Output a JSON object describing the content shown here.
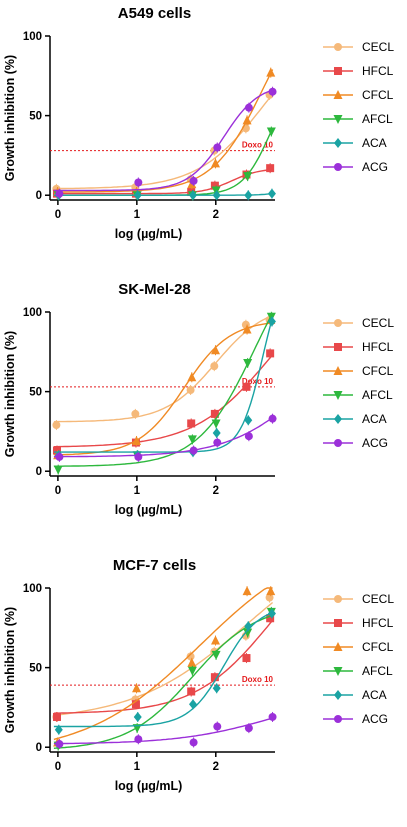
{
  "chart_data": [
    {
      "type": "line",
      "title": "A549 cells",
      "xlabel": "log (µg/mL)",
      "ylabel": "Growth inhibition (%)",
      "xlim": [
        -0.1,
        2.75
      ],
      "ylim": [
        -3,
        100
      ],
      "xticks": [
        0,
        1,
        2
      ],
      "yticks": [
        0,
        50,
        100
      ],
      "reference": {
        "label": "Doxo 10",
        "y": 28
      },
      "legend_position": "right",
      "x": [
        0,
        1,
        1.7,
        2,
        2.4,
        2.7
      ],
      "series": [
        {
          "name": "CECL",
          "color": "#f5b97a",
          "marker": "circle",
          "values": [
            4,
            5,
            10,
            28,
            42,
            63
          ]
        },
        {
          "name": "HFCL",
          "color": "#e8484a",
          "marker": "square",
          "values": [
            1,
            1,
            2,
            6,
            13,
            17
          ]
        },
        {
          "name": "CFCL",
          "color": "#f08a24",
          "marker": "triangle-up",
          "values": [
            2,
            2,
            7,
            20,
            47,
            77
          ]
        },
        {
          "name": "AFCL",
          "color": "#2db83d",
          "marker": "triangle-down",
          "values": [
            0,
            0,
            0,
            3,
            12,
            40
          ]
        },
        {
          "name": "ACA",
          "color": "#1aa3a3",
          "marker": "diamond",
          "values": [
            0,
            0,
            0,
            0,
            0,
            1
          ]
        },
        {
          "name": "ACG",
          "color": "#9b30d9",
          "marker": "circle",
          "values": [
            1,
            8,
            9,
            30,
            55,
            65
          ]
        }
      ]
    },
    {
      "type": "line",
      "title": "SK-Mel-28",
      "xlabel": "log (µg/mL)",
      "ylabel": "Growth inhibition (%)",
      "xlim": [
        -0.1,
        2.75
      ],
      "ylim": [
        -3,
        100
      ],
      "xticks": [
        0,
        1,
        2
      ],
      "yticks": [
        0,
        50,
        100
      ],
      "reference": {
        "label": "Doxo 10",
        "y": 53
      },
      "legend_position": "right",
      "x": [
        0,
        1,
        1.7,
        2,
        2.4,
        2.7
      ],
      "series": [
        {
          "name": "CECL",
          "color": "#f5b97a",
          "marker": "circle",
          "values": [
            29,
            36,
            51,
            66,
            92,
            95
          ]
        },
        {
          "name": "HFCL",
          "color": "#e8484a",
          "marker": "square",
          "values": [
            13,
            18,
            30,
            36,
            53,
            74
          ]
        },
        {
          "name": "CFCL",
          "color": "#f08a24",
          "marker": "triangle-up",
          "values": [
            10,
            19,
            59,
            76,
            89,
            95
          ]
        },
        {
          "name": "AFCL",
          "color": "#2db83d",
          "marker": "triangle-down",
          "values": [
            1,
            10,
            20,
            30,
            68,
            97
          ]
        },
        {
          "name": "ACA",
          "color": "#1aa3a3",
          "marker": "diamond",
          "values": [
            10,
            10,
            12,
            24,
            32,
            94
          ]
        },
        {
          "name": "ACG",
          "color": "#9b30d9",
          "marker": "circle",
          "values": [
            9,
            9,
            13,
            18,
            22,
            33
          ]
        }
      ]
    },
    {
      "type": "line",
      "title": "MCF-7 cells",
      "xlabel": "log (µg/mL)",
      "ylabel": "Growth inhibition (%)",
      "xlim": [
        -0.1,
        2.75
      ],
      "ylim": [
        -3,
        100
      ],
      "xticks": [
        0,
        1,
        2
      ],
      "yticks": [
        0,
        50,
        100
      ],
      "reference": {
        "label": "Doxo 10",
        "y": 39
      },
      "legend_position": "right",
      "x": [
        0,
        1,
        1.7,
        2,
        2.4,
        2.7
      ],
      "series": [
        {
          "name": "CECL",
          "color": "#f5b97a",
          "marker": "circle",
          "values": [
            19,
            30,
            57,
            60,
            70,
            94
          ]
        },
        {
          "name": "HFCL",
          "color": "#e8484a",
          "marker": "square",
          "values": [
            19,
            27,
            35,
            44,
            56,
            81
          ]
        },
        {
          "name": "CFCL",
          "color": "#f08a24",
          "marker": "triangle-up",
          "values": [
            3,
            37,
            53,
            67,
            98,
            98
          ]
        },
        {
          "name": "AFCL",
          "color": "#2db83d",
          "marker": "triangle-down",
          "values": [
            1,
            12,
            48,
            58,
            72,
            85
          ]
        },
        {
          "name": "ACA",
          "color": "#1aa3a3",
          "marker": "diamond",
          "values": [
            11,
            19,
            27,
            37,
            76,
            84
          ]
        },
        {
          "name": "ACG",
          "color": "#9b30d9",
          "marker": "circle",
          "values": [
            2,
            5,
            3,
            13,
            12,
            19
          ]
        }
      ]
    }
  ]
}
